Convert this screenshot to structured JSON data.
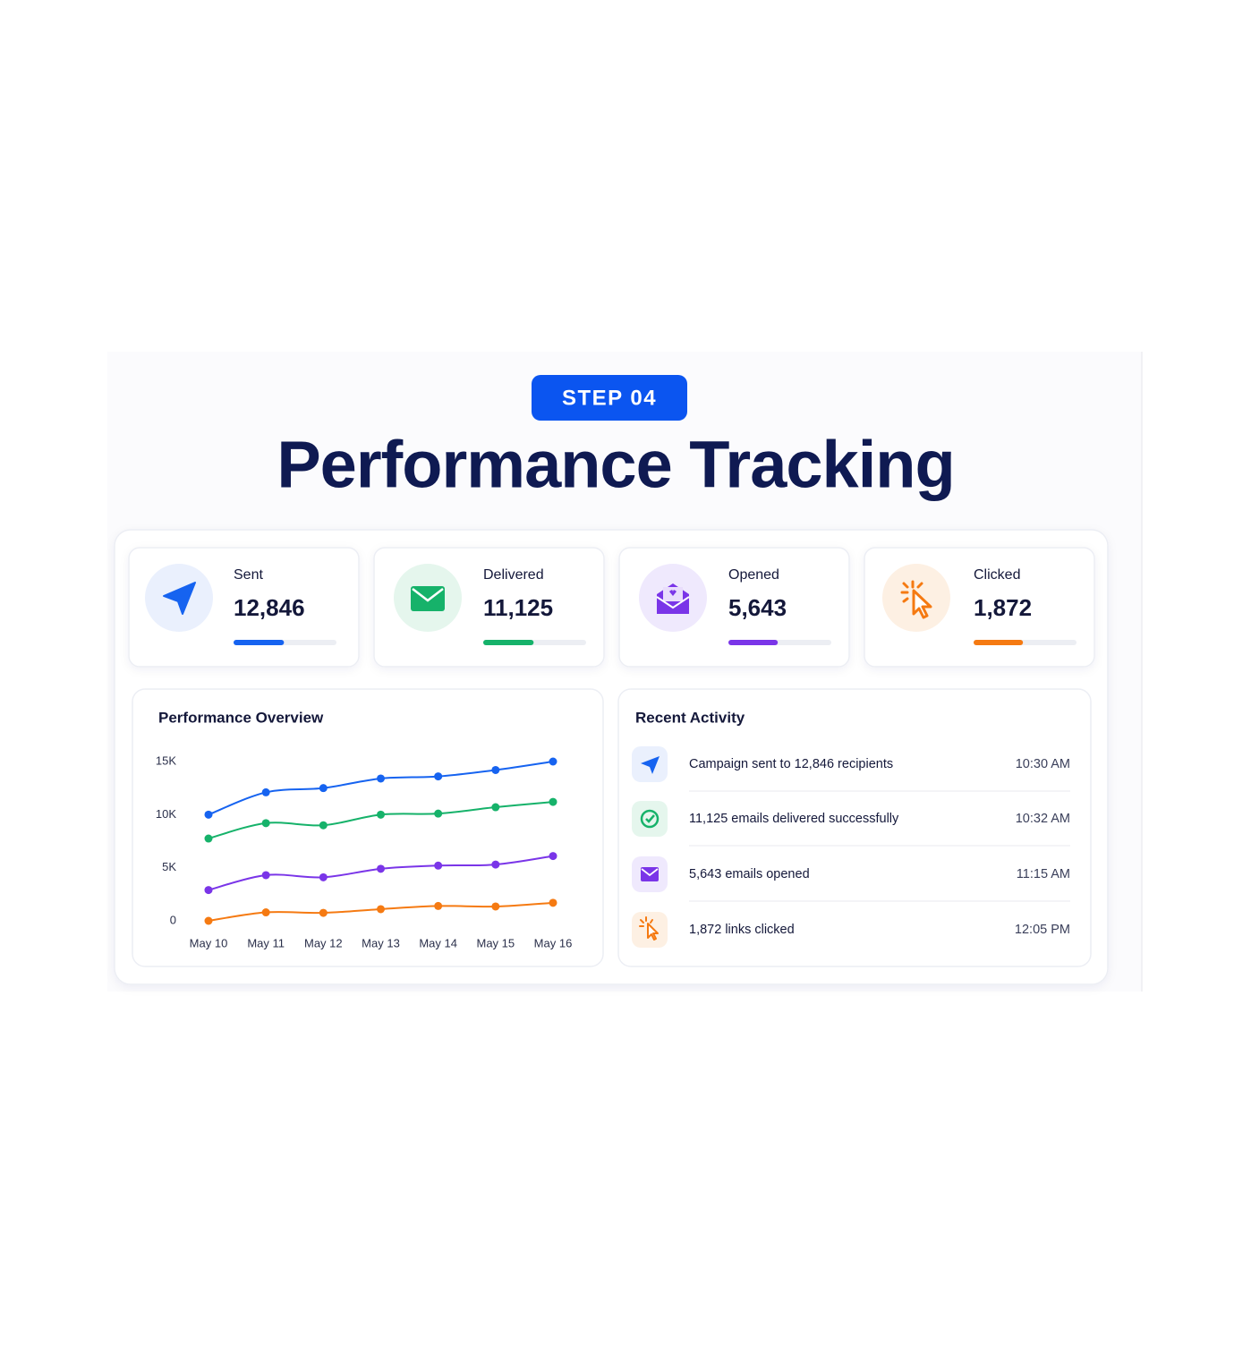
{
  "header": {
    "step": "STEP 04",
    "title": "Performance Tracking"
  },
  "stats": [
    {
      "label": "Sent",
      "value": "12,846",
      "progress": 49,
      "color": "#1663f0"
    },
    {
      "label": "Delivered",
      "value": "11,125",
      "progress": 49,
      "color": "#16b26a"
    },
    {
      "label": "Opened",
      "value": "5,643",
      "progress": 48,
      "color": "#7a35e8"
    },
    {
      "label": "Clicked",
      "value": "1,872",
      "progress": 48,
      "color": "#f57a12"
    }
  ],
  "chart_data": {
    "type": "line",
    "title": "Performance Overview",
    "categories": [
      "May 10",
      "May 11",
      "May 12",
      "May 13",
      "May 14",
      "May 15",
      "May 16"
    ],
    "series": [
      {
        "color": "#1663f0",
        "values": [
          10000,
          12100,
          12500,
          13400,
          13600,
          14200,
          15000
        ]
      },
      {
        "color": "#16b26a",
        "values": [
          7750,
          9200,
          9000,
          10000,
          10100,
          10700,
          11200
        ]
      },
      {
        "color": "#7a35e8",
        "values": [
          2900,
          4300,
          4100,
          4900,
          5200,
          5300,
          6100
        ]
      },
      {
        "color": "#f57a12",
        "values": [
          0,
          800,
          750,
          1100,
          1400,
          1350,
          1700
        ]
      }
    ],
    "ylim": [
      0,
      15000
    ],
    "yticks": [
      0,
      {
        "value": 5000,
        "label": "5K"
      },
      {
        "value": 10000,
        "label": "10K"
      },
      {
        "value": 15000,
        "label": "15K"
      }
    ]
  },
  "activity": {
    "title": "Recent Activity",
    "items": [
      {
        "text": "Campaign sent to 12,846 recipients",
        "time": "10:30 AM"
      },
      {
        "text": "11,125 emails delivered successfully",
        "time": "10:32 AM"
      },
      {
        "text": "5,643 emails opened",
        "time": "11:15 AM"
      },
      {
        "text": "1,872 links clicked",
        "time": "12:05 PM"
      }
    ]
  }
}
